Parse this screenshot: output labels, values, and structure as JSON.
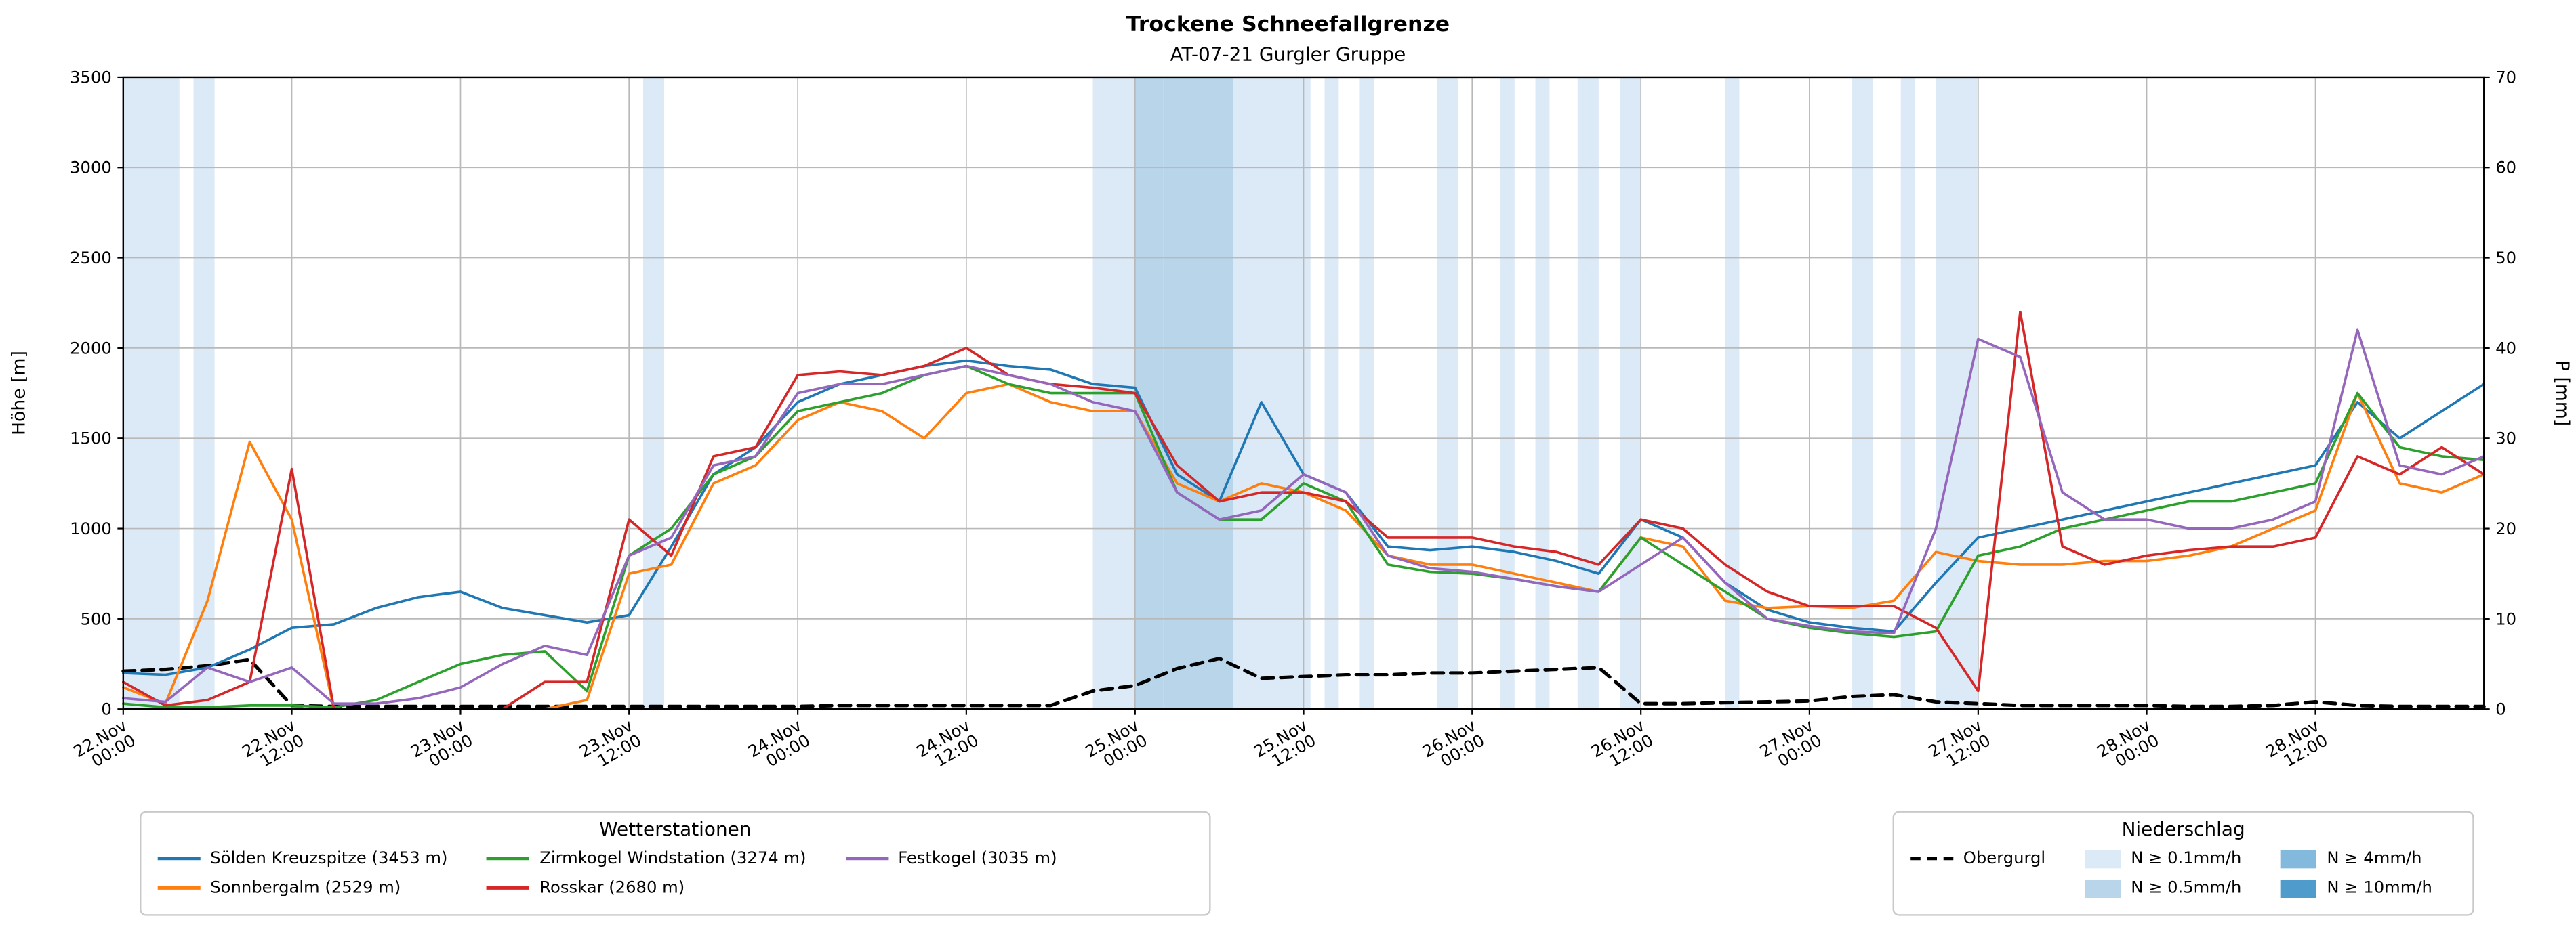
{
  "title": "Trockene Schneefallgrenze",
  "subtitle": "AT-07-21 Gurgler Gruppe",
  "axes": {
    "ylabel_left": "Höhe [m]",
    "ylabel_right": "P [mm]"
  },
  "legend_stations": {
    "title": "Wetterstationen",
    "items": [
      {
        "label": "Sölden Kreuzspitze (3453 m)",
        "color": "#1f77b4"
      },
      {
        "label": "Sonnbergalm (2529 m)",
        "color": "#ff7f0e"
      },
      {
        "label": "Zirmkogel Windstation (3274 m)",
        "color": "#2ca02c"
      },
      {
        "label": "Rosskar (2680 m)",
        "color": "#d62728"
      },
      {
        "label": "Festkogel (3035 m)",
        "color": "#9467bd"
      }
    ]
  },
  "legend_precip": {
    "title": "Niederschlag",
    "line_item": {
      "label": "Obergurgl"
    },
    "patch_items": [
      {
        "label": "N ≥ 0.1mm/h",
        "level": "0.1"
      },
      {
        "label": "N ≥ 0.5mm/h",
        "level": "0.5"
      },
      {
        "label": "N ≥ 4mm/h",
        "level": "4"
      },
      {
        "label": "N ≥ 10mm/h",
        "level": "10"
      }
    ]
  },
  "chart_data": {
    "type": "line",
    "title": "Trockene Schneefallgrenze",
    "subtitle": "AT-07-21 Gurgler Gruppe",
    "xlabel": "",
    "ylabel_left": "Höhe [m]",
    "ylabel_right": "P [mm]",
    "ylim_left": [
      0,
      3500
    ],
    "ylim_right": [
      0,
      70
    ],
    "xlim_hours": [
      0,
      168
    ],
    "grid": true,
    "yticks_left": [
      0,
      500,
      1000,
      1500,
      2000,
      2500,
      3000,
      3500
    ],
    "yticks_right": [
      0,
      10,
      20,
      30,
      40,
      50,
      60,
      70
    ],
    "x_ticks": [
      {
        "hour": 0,
        "line1": "22.Nov",
        "line2": "00:00"
      },
      {
        "hour": 12,
        "line1": "22.Nov",
        "line2": "12:00"
      },
      {
        "hour": 24,
        "line1": "23.Nov",
        "line2": "00:00"
      },
      {
        "hour": 36,
        "line1": "23.Nov",
        "line2": "12:00"
      },
      {
        "hour": 48,
        "line1": "24.Nov",
        "line2": "00:00"
      },
      {
        "hour": 60,
        "line1": "24.Nov",
        "line2": "12:00"
      },
      {
        "hour": 72,
        "line1": "25.Nov",
        "line2": "00:00"
      },
      {
        "hour": 84,
        "line1": "25.Nov",
        "line2": "12:00"
      },
      {
        "hour": 96,
        "line1": "26.Nov",
        "line2": "00:00"
      },
      {
        "hour": 108,
        "line1": "26.Nov",
        "line2": "12:00"
      },
      {
        "hour": 120,
        "line1": "27.Nov",
        "line2": "00:00"
      },
      {
        "hour": 132,
        "line1": "27.Nov",
        "line2": "12:00"
      },
      {
        "hour": 144,
        "line1": "28.Nov",
        "line2": "00:00"
      },
      {
        "hour": 156,
        "line1": "28.Nov",
        "line2": "12:00"
      }
    ],
    "x_hours": [
      0,
      3,
      6,
      9,
      12,
      15,
      18,
      21,
      24,
      27,
      30,
      33,
      36,
      39,
      42,
      45,
      48,
      51,
      54,
      57,
      60,
      63,
      66,
      69,
      72,
      75,
      78,
      81,
      84,
      87,
      90,
      93,
      96,
      99,
      102,
      105,
      108,
      111,
      114,
      117,
      120,
      123,
      126,
      129,
      132,
      135,
      138,
      141,
      144,
      147,
      150,
      153,
      156,
      159,
      162,
      165,
      168
    ],
    "series": [
      {
        "name": "Sölden Kreuzspitze (3453 m)",
        "color": "#1f77b4",
        "axis": "left",
        "dash": false,
        "values": [
          200,
          190,
          230,
          330,
          450,
          470,
          560,
          620,
          650,
          560,
          520,
          480,
          520,
          900,
          1300,
          1450,
          1700,
          1800,
          1850,
          1900,
          1930,
          1900,
          1880,
          1800,
          1780,
          1300,
          1150,
          1700,
          1300,
          1200,
          900,
          880,
          900,
          870,
          820,
          750,
          1050,
          950,
          700,
          550,
          480,
          450,
          430,
          700,
          950,
          1000,
          1050,
          1100,
          1150,
          1200,
          1250,
          1300,
          1350,
          1700,
          1500,
          1650,
          1800
        ]
      },
      {
        "name": "Sonnbergalm (2529 m)",
        "color": "#ff7f0e",
        "axis": "left",
        "dash": false,
        "values": [
          120,
          30,
          600,
          1480,
          1050,
          0,
          0,
          0,
          0,
          0,
          0,
          50,
          750,
          800,
          1250,
          1350,
          1600,
          1700,
          1650,
          1500,
          1750,
          1800,
          1700,
          1650,
          1650,
          1250,
          1150,
          1250,
          1200,
          1100,
          850,
          800,
          800,
          750,
          700,
          650,
          950,
          900,
          600,
          560,
          570,
          560,
          600,
          870,
          820,
          800,
          800,
          820,
          820,
          850,
          900,
          1000,
          1100,
          1750,
          1250,
          1200,
          1300
        ]
      },
      {
        "name": "Zirmkogel Windstation (3274 m)",
        "color": "#2ca02c",
        "axis": "left",
        "dash": false,
        "values": [
          30,
          10,
          10,
          20,
          20,
          10,
          50,
          150,
          250,
          300,
          320,
          100,
          850,
          1000,
          1300,
          1400,
          1650,
          1700,
          1750,
          1850,
          1900,
          1800,
          1750,
          1750,
          1750,
          1200,
          1050,
          1050,
          1250,
          1150,
          800,
          760,
          750,
          720,
          680,
          650,
          950,
          800,
          650,
          500,
          450,
          420,
          400,
          430,
          850,
          900,
          1000,
          1050,
          1100,
          1150,
          1150,
          1200,
          1250,
          1750,
          1450,
          1400,
          1380
        ]
      },
      {
        "name": "Rosskar (2680 m)",
        "color": "#d62728",
        "axis": "left",
        "dash": false,
        "values": [
          150,
          20,
          50,
          150,
          1330,
          0,
          0,
          0,
          0,
          0,
          150,
          150,
          1050,
          850,
          1400,
          1450,
          1850,
          1870,
          1850,
          1900,
          2000,
          1850,
          1800,
          1780,
          1750,
          1350,
          1150,
          1200,
          1200,
          1150,
          950,
          950,
          950,
          900,
          870,
          800,
          1050,
          1000,
          800,
          650,
          570,
          570,
          570,
          450,
          100,
          2200,
          900,
          800,
          850,
          880,
          900,
          900,
          950,
          1400,
          1300,
          1450,
          1300
        ]
      },
      {
        "name": "Festkogel (3035 m)",
        "color": "#9467bd",
        "axis": "left",
        "dash": false,
        "values": [
          60,
          40,
          230,
          150,
          230,
          30,
          30,
          60,
          120,
          250,
          350,
          300,
          850,
          950,
          1350,
          1400,
          1750,
          1800,
          1800,
          1850,
          1900,
          1850,
          1800,
          1700,
          1650,
          1200,
          1050,
          1100,
          1300,
          1200,
          850,
          780,
          760,
          720,
          680,
          650,
          800,
          950,
          700,
          500,
          460,
          430,
          420,
          1000,
          2050,
          1950,
          1200,
          1050,
          1050,
          1000,
          1000,
          1050,
          1150,
          2100,
          1350,
          1300,
          1400
        ]
      },
      {
        "name": "Obergurgl",
        "color": "#000000",
        "axis": "right",
        "dash": true,
        "values": [
          4.2,
          4.4,
          4.8,
          5.5,
          0.4,
          0.3,
          0.3,
          0.3,
          0.3,
          0.3,
          0.3,
          0.3,
          0.3,
          0.3,
          0.3,
          0.3,
          0.3,
          0.4,
          0.4,
          0.4,
          0.4,
          0.4,
          0.4,
          2.0,
          2.6,
          4.5,
          5.6,
          3.4,
          3.6,
          3.8,
          3.8,
          4.0,
          4.0,
          4.2,
          4.4,
          4.6,
          0.6,
          0.6,
          0.7,
          0.8,
          0.9,
          1.4,
          1.6,
          0.8,
          0.6,
          0.4,
          0.4,
          0.4,
          0.4,
          0.3,
          0.3,
          0.4,
          0.8,
          0.4,
          0.3,
          0.3,
          0.3
        ]
      }
    ],
    "band_colors": {
      "0.1": "#dce9f6",
      "0.5": "#b8d5ea",
      "4": "#82b9dc",
      "10": "#4f9bcb"
    },
    "precip_bands": [
      {
        "start": 0,
        "end": 4,
        "level": "0.1"
      },
      {
        "start": 5,
        "end": 6.5,
        "level": "0.1"
      },
      {
        "start": 37,
        "end": 38.5,
        "level": "0.1"
      },
      {
        "start": 69,
        "end": 72,
        "level": "0.1"
      },
      {
        "start": 72,
        "end": 74,
        "level": "0.5"
      },
      {
        "start": 74,
        "end": 79,
        "level": "0.5"
      },
      {
        "start": 79,
        "end": 84.5,
        "level": "0.1"
      },
      {
        "start": 85.5,
        "end": 86.5,
        "level": "0.1"
      },
      {
        "start": 88,
        "end": 89,
        "level": "0.1"
      },
      {
        "start": 93.5,
        "end": 95,
        "level": "0.1"
      },
      {
        "start": 98,
        "end": 99,
        "level": "0.1"
      },
      {
        "start": 100.5,
        "end": 101.5,
        "level": "0.1"
      },
      {
        "start": 103.5,
        "end": 105,
        "level": "0.1"
      },
      {
        "start": 106.5,
        "end": 108,
        "level": "0.1"
      },
      {
        "start": 114,
        "end": 115,
        "level": "0.1"
      },
      {
        "start": 123,
        "end": 124.5,
        "level": "0.1"
      },
      {
        "start": 126.5,
        "end": 127.5,
        "level": "0.1"
      },
      {
        "start": 129,
        "end": 132,
        "level": "0.1"
      }
    ],
    "legend_position": "below"
  }
}
